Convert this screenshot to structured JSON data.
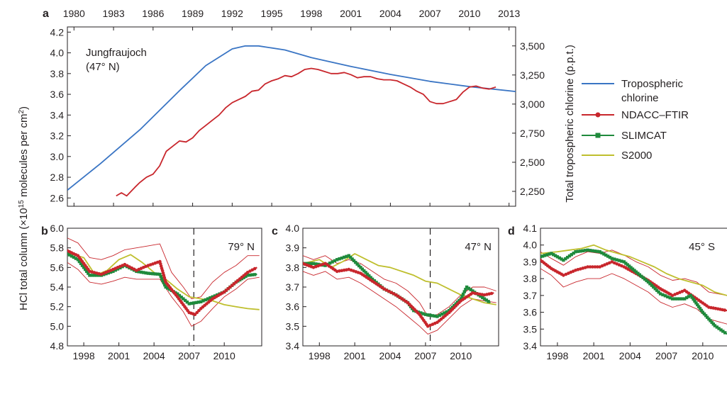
{
  "figure": {
    "left_axis_label": "HCl total column (×10",
    "left_axis_label_sup": "15",
    "left_axis_label_tail": " molecules per cm",
    "left_axis_label_sup2": "2",
    "left_axis_label_end": ")"
  },
  "legend": {
    "items": [
      {
        "label": "Tropospheric",
        "label2": "chlorine",
        "color": "#3a75c4",
        "marker": "none"
      },
      {
        "label": "NDACC–FTIR",
        "label2": "",
        "color": "#c8262c",
        "marker": "circle"
      },
      {
        "label": "SLIMCAT",
        "label2": "",
        "color": "#1f8a3c",
        "marker": "square"
      },
      {
        "label": "S2000",
        "label2": "",
        "color": "#bfbf2e",
        "marker": "none"
      }
    ]
  },
  "chart_data": [
    {
      "panel": "a",
      "type": "line",
      "site_label": "Jungfraujoch",
      "site_label2": "(47° N)",
      "xlim": [
        1979.5,
        2013.5
      ],
      "xticks": [
        1980,
        1983,
        1986,
        1989,
        1992,
        1995,
        1998,
        2001,
        2004,
        2007,
        2010,
        2013
      ],
      "ylim": [
        2.52,
        4.25
      ],
      "yticks": [
        2.6,
        2.8,
        3.0,
        3.2,
        3.4,
        3.6,
        3.8,
        4.0,
        4.2
      ],
      "ytick_labels": [
        "2.6",
        "2.8",
        "3.0",
        "3.2",
        "3.4",
        "3.6",
        "3.8",
        "4.0",
        "4.2"
      ],
      "ylabel_right": "Total tropospheric chlorine (p.p.t.)",
      "y2lim": [
        2122,
        3663
      ],
      "y2ticks": [
        2250,
        2500,
        2750,
        3000,
        3250,
        3500
      ],
      "y2tick_labels": [
        "2,250",
        "2,500",
        "2,750",
        "3,000",
        "3,250",
        "3,500"
      ],
      "series": [
        {
          "name": "Tropospheric chlorine",
          "axis": "right",
          "color": "#3a75c4",
          "x": [
            1979.5,
            1982,
            1985,
            1988,
            1990,
            1992,
            1993,
            1994,
            1996,
            1998,
            2001,
            2004,
            2007,
            2010,
            2013.5
          ],
          "y": [
            2260,
            2488,
            2779,
            3115,
            3331,
            3474,
            3500,
            3500,
            3465,
            3400,
            3324,
            3255,
            3195,
            3150,
            3108
          ]
        },
        {
          "name": "NDACC–FTIR",
          "axis": "left",
          "color": "#c8262c",
          "x": [
            1983.2,
            1983.6,
            1984,
            1984.6,
            1985,
            1985.5,
            1986,
            1986.5,
            1987,
            1987.5,
            1988,
            1988.5,
            1989,
            1989.5,
            1990,
            1990.5,
            1991,
            1991.5,
            1992,
            1992.5,
            1993,
            1993.5,
            1994,
            1994.5,
            1995,
            1995.5,
            1996,
            1996.5,
            1997,
            1997.5,
            1998,
            1998.5,
            1999,
            1999.5,
            2000,
            2000.5,
            2001,
            2001.5,
            2002,
            2002.5,
            2003,
            2003.5,
            2004,
            2004.5,
            2005,
            2005.5,
            2006,
            2006.5,
            2007,
            2007.5,
            2008,
            2008.5,
            2009,
            2009.5,
            2010,
            2010.5,
            2011,
            2011.5,
            2012
          ],
          "y": [
            2.62,
            2.65,
            2.62,
            2.7,
            2.75,
            2.8,
            2.83,
            2.91,
            3.05,
            3.1,
            3.15,
            3.14,
            3.18,
            3.25,
            3.3,
            3.35,
            3.4,
            3.47,
            3.52,
            3.55,
            3.58,
            3.63,
            3.64,
            3.7,
            3.73,
            3.75,
            3.78,
            3.77,
            3.8,
            3.84,
            3.85,
            3.84,
            3.82,
            3.8,
            3.8,
            3.81,
            3.79,
            3.76,
            3.77,
            3.77,
            3.75,
            3.74,
            3.74,
            3.73,
            3.7,
            3.67,
            3.63,
            3.6,
            3.53,
            3.51,
            3.51,
            3.53,
            3.55,
            3.62,
            3.67,
            3.68,
            3.66,
            3.65,
            3.67
          ]
        }
      ]
    },
    {
      "panel": "b",
      "type": "line",
      "site_label": "79° N",
      "xlim": [
        1996.6,
        2013.2
      ],
      "xticks": [
        1998,
        2001,
        2004,
        2007,
        2010
      ],
      "ylim": [
        4.8,
        6.0
      ],
      "yticks": [
        4.8,
        5.0,
        5.2,
        5.4,
        5.6,
        5.8,
        6.0
      ],
      "ytick_labels": [
        "4.8",
        "5.0",
        "5.2",
        "5.4",
        "5.6",
        "5.8",
        "6.0"
      ],
      "vline_x": 2007.4,
      "series": [
        {
          "name": "NDACC–FTIR upper",
          "color": "#c8262c",
          "thin": true,
          "x": [
            1996.6,
            1997.5,
            1998.5,
            1999.5,
            2000.5,
            2001.5,
            2002.5,
            2003.5,
            2004.5,
            2005.5,
            2006.5,
            2007.2,
            2008.0,
            2009.0,
            2010.0,
            2011.0,
            2012.0,
            2013.0
          ],
          "y": [
            5.9,
            5.85,
            5.7,
            5.68,
            5.72,
            5.78,
            5.8,
            5.82,
            5.84,
            5.55,
            5.4,
            5.28,
            5.3,
            5.45,
            5.55,
            5.62,
            5.72,
            5.72
          ]
        },
        {
          "name": "NDACC–FTIR lower",
          "color": "#c8262c",
          "thin": true,
          "x": [
            1996.6,
            1997.5,
            1998.5,
            1999.5,
            2000.5,
            2001.5,
            2002.5,
            2003.5,
            2004.5,
            2005.5,
            2006.5,
            2007.2,
            2008.0,
            2009.0,
            2010.0,
            2011.0,
            2012.0,
            2013.0
          ],
          "y": [
            5.65,
            5.58,
            5.45,
            5.43,
            5.46,
            5.5,
            5.48,
            5.48,
            5.48,
            5.3,
            5.15,
            5.0,
            5.05,
            5.18,
            5.3,
            5.38,
            5.48,
            5.5
          ]
        },
        {
          "name": "S2000",
          "color": "#bfbf2e",
          "x": [
            1996.6,
            1998,
            1999,
            2000,
            2001,
            2002,
            2003,
            2004,
            2005,
            2006,
            2007,
            2008,
            2009,
            2010,
            2011,
            2012,
            2013
          ],
          "y": [
            5.75,
            5.7,
            5.52,
            5.57,
            5.68,
            5.73,
            5.65,
            5.55,
            5.48,
            5.38,
            5.3,
            5.28,
            5.26,
            5.22,
            5.2,
            5.18,
            5.17
          ]
        },
        {
          "name": "SLIMCAT",
          "color": "#1f8a3c",
          "marker": "square",
          "x": [
            1996.6,
            1997.5,
            1998.5,
            1999.5,
            2000.5,
            2001.5,
            2002.5,
            2003.5,
            2004.5,
            2005.0,
            2006.0,
            2007.0,
            2008.0,
            2009.0,
            2010.0,
            2011.0,
            2012.0,
            2012.8
          ],
          "y": [
            5.74,
            5.68,
            5.52,
            5.52,
            5.56,
            5.62,
            5.56,
            5.54,
            5.53,
            5.4,
            5.33,
            5.23,
            5.25,
            5.3,
            5.35,
            5.45,
            5.52,
            5.53
          ]
        },
        {
          "name": "NDACC–FTIR",
          "color": "#c8262c",
          "marker": "circle",
          "x": [
            1996.6,
            1997.5,
            1998.5,
            1999.5,
            2000.5,
            2001.5,
            2002.5,
            2003.5,
            2004.5,
            2005.0,
            2006.0,
            2007.0,
            2007.5,
            2008.0,
            2009.0,
            2010.0,
            2011.0,
            2012.0,
            2012.8
          ],
          "y": [
            5.77,
            5.72,
            5.56,
            5.53,
            5.58,
            5.63,
            5.57,
            5.62,
            5.66,
            5.45,
            5.3,
            5.14,
            5.12,
            5.18,
            5.28,
            5.35,
            5.45,
            5.55,
            5.6
          ]
        }
      ]
    },
    {
      "panel": "c",
      "type": "line",
      "site_label": "47° N",
      "xlim": [
        1996.6,
        2013.2
      ],
      "xticks": [
        1998,
        2001,
        2004,
        2007,
        2010
      ],
      "ylim": [
        3.4,
        4.0
      ],
      "yticks": [
        3.4,
        3.5,
        3.6,
        3.7,
        3.8,
        3.9,
        4.0
      ],
      "ytick_labels": [
        "3.4",
        "3.5",
        "3.6",
        "3.7",
        "3.8",
        "3.9",
        "4.0"
      ],
      "vline_x": 2007.4,
      "series": [
        {
          "name": "NDACC–FTIR upper",
          "color": "#c8262c",
          "thin": true,
          "x": [
            1996.6,
            1997.5,
            1998.5,
            1999.5,
            2000.5,
            2001.5,
            2002.5,
            2003.5,
            2004.5,
            2005.5,
            2006.5,
            2007.2,
            2008.0,
            2009.0,
            2010.0,
            2011.0,
            2012.0,
            2013.0
          ],
          "y": [
            3.86,
            3.84,
            3.86,
            3.82,
            3.84,
            3.82,
            3.78,
            3.74,
            3.72,
            3.68,
            3.62,
            3.55,
            3.56,
            3.6,
            3.66,
            3.7,
            3.7,
            3.68
          ]
        },
        {
          "name": "NDACC–FTIR lower",
          "color": "#c8262c",
          "thin": true,
          "x": [
            1996.6,
            1997.5,
            1998.5,
            1999.5,
            2000.5,
            2001.5,
            2002.5,
            2003.5,
            2004.5,
            2005.5,
            2006.5,
            2007.2,
            2008.0,
            2009.0,
            2010.0,
            2011.0,
            2012.0,
            2013.0
          ],
          "y": [
            3.78,
            3.76,
            3.78,
            3.74,
            3.75,
            3.72,
            3.68,
            3.64,
            3.6,
            3.55,
            3.5,
            3.46,
            3.48,
            3.54,
            3.6,
            3.64,
            3.63,
            3.62
          ]
        },
        {
          "name": "S2000",
          "color": "#bfbf2e",
          "x": [
            1996.6,
            1998,
            1999,
            2000,
            2001,
            2002,
            2003,
            2004,
            2005,
            2006,
            2007,
            2008,
            2009,
            2010,
            2011,
            2012,
            2013
          ],
          "y": [
            3.82,
            3.84,
            3.8,
            3.83,
            3.87,
            3.84,
            3.81,
            3.8,
            3.78,
            3.76,
            3.73,
            3.72,
            3.69,
            3.66,
            3.64,
            3.62,
            3.61
          ]
        },
        {
          "name": "SLIMCAT",
          "color": "#1f8a3c",
          "marker": "square",
          "x": [
            1996.6,
            1997.5,
            1998.5,
            1999.5,
            2000.5,
            2001.5,
            2002.5,
            2003.5,
            2004.5,
            2005.5,
            2006.0,
            2007.0,
            2008.0,
            2009.0,
            2010.0,
            2010.5,
            2011.5,
            2012.5
          ],
          "y": [
            3.82,
            3.82,
            3.81,
            3.84,
            3.86,
            3.8,
            3.74,
            3.69,
            3.66,
            3.62,
            3.58,
            3.56,
            3.55,
            3.58,
            3.64,
            3.7,
            3.66,
            3.62
          ]
        },
        {
          "name": "NDACC–FTIR",
          "color": "#c8262c",
          "marker": "circle",
          "x": [
            1996.6,
            1997.5,
            1998.5,
            1999.5,
            2000.5,
            2001.5,
            2002.5,
            2003.5,
            2004.5,
            2005.5,
            2006.5,
            2007.2,
            2008.0,
            2009.0,
            2010.0,
            2011.0,
            2012.0,
            2012.8
          ],
          "y": [
            3.82,
            3.8,
            3.82,
            3.78,
            3.79,
            3.77,
            3.73,
            3.69,
            3.66,
            3.62,
            3.56,
            3.5,
            3.52,
            3.57,
            3.63,
            3.67,
            3.66,
            3.67
          ]
        }
      ]
    },
    {
      "panel": "d",
      "type": "line",
      "site_label": "45° S",
      "xlim": [
        1996.6,
        2012.0
      ],
      "xticks": [
        1998,
        2001,
        2004,
        2007,
        2010
      ],
      "ylim": [
        3.4,
        4.1
      ],
      "yticks": [
        3.4,
        3.5,
        3.6,
        3.7,
        3.8,
        3.9,
        4.0,
        4.1
      ],
      "ytick_labels": [
        "3.4",
        "3.5",
        "3.6",
        "3.7",
        "3.8",
        "3.9",
        "4.0",
        "4.1"
      ],
      "series": [
        {
          "name": "NDACC–FTIR upper",
          "color": "#c8262c",
          "thin": true,
          "x": [
            1996.6,
            1997.5,
            1998.5,
            1999.5,
            2000.5,
            2001.5,
            2002.5,
            2003.5,
            2004.5,
            2005.5,
            2006.5,
            2007.5,
            2008.5,
            2009.5,
            2010.5,
            2012.0
          ],
          "y": [
            3.96,
            3.92,
            3.88,
            3.93,
            3.96,
            3.95,
            3.97,
            3.94,
            3.9,
            3.87,
            3.82,
            3.79,
            3.8,
            3.78,
            3.72,
            3.7
          ]
        },
        {
          "name": "NDACC–FTIR lower",
          "color": "#c8262c",
          "thin": true,
          "x": [
            1996.6,
            1997.5,
            1998.5,
            1999.5,
            2000.5,
            2001.5,
            2002.5,
            2003.5,
            2004.5,
            2005.5,
            2006.5,
            2007.5,
            2008.5,
            2009.5,
            2010.5,
            2012.0
          ],
          "y": [
            3.86,
            3.82,
            3.75,
            3.78,
            3.8,
            3.8,
            3.83,
            3.8,
            3.76,
            3.72,
            3.66,
            3.63,
            3.65,
            3.62,
            3.56,
            3.53
          ]
        },
        {
          "name": "S2000",
          "color": "#bfbf2e",
          "x": [
            1996.6,
            1998,
            1999,
            2000,
            2001,
            2002,
            2003,
            2004,
            2005,
            2006,
            2007,
            2008,
            2009,
            2010,
            2011,
            2012
          ],
          "y": [
            3.95,
            3.96,
            3.97,
            3.98,
            4.0,
            3.97,
            3.95,
            3.93,
            3.9,
            3.87,
            3.83,
            3.8,
            3.78,
            3.76,
            3.72,
            3.7
          ]
        },
        {
          "name": "NDACC–FTIR",
          "color": "#c8262c",
          "marker": "circle",
          "x": [
            1996.6,
            1997.5,
            1998.5,
            1999.5,
            2000.5,
            2001.5,
            2002.5,
            2003.5,
            2004.5,
            2005.5,
            2006.5,
            2007.5,
            2008.5,
            2009.5,
            2010.5,
            2012.0
          ],
          "y": [
            3.91,
            3.86,
            3.82,
            3.85,
            3.87,
            3.87,
            3.9,
            3.87,
            3.83,
            3.79,
            3.74,
            3.7,
            3.73,
            3.68,
            3.63,
            3.61
          ]
        },
        {
          "name": "SLIMCAT",
          "color": "#1f8a3c",
          "marker": "square",
          "x": [
            1996.6,
            1997.5,
            1998.5,
            1999.5,
            2000.5,
            2001.5,
            2002.5,
            2003.5,
            2004.5,
            2005.5,
            2006.5,
            2007.5,
            2008.5,
            2009.0,
            2010.0,
            2011.0,
            2012.0
          ],
          "y": [
            3.93,
            3.95,
            3.91,
            3.96,
            3.97,
            3.96,
            3.92,
            3.9,
            3.84,
            3.78,
            3.71,
            3.68,
            3.68,
            3.7,
            3.6,
            3.52,
            3.47
          ]
        }
      ]
    }
  ]
}
